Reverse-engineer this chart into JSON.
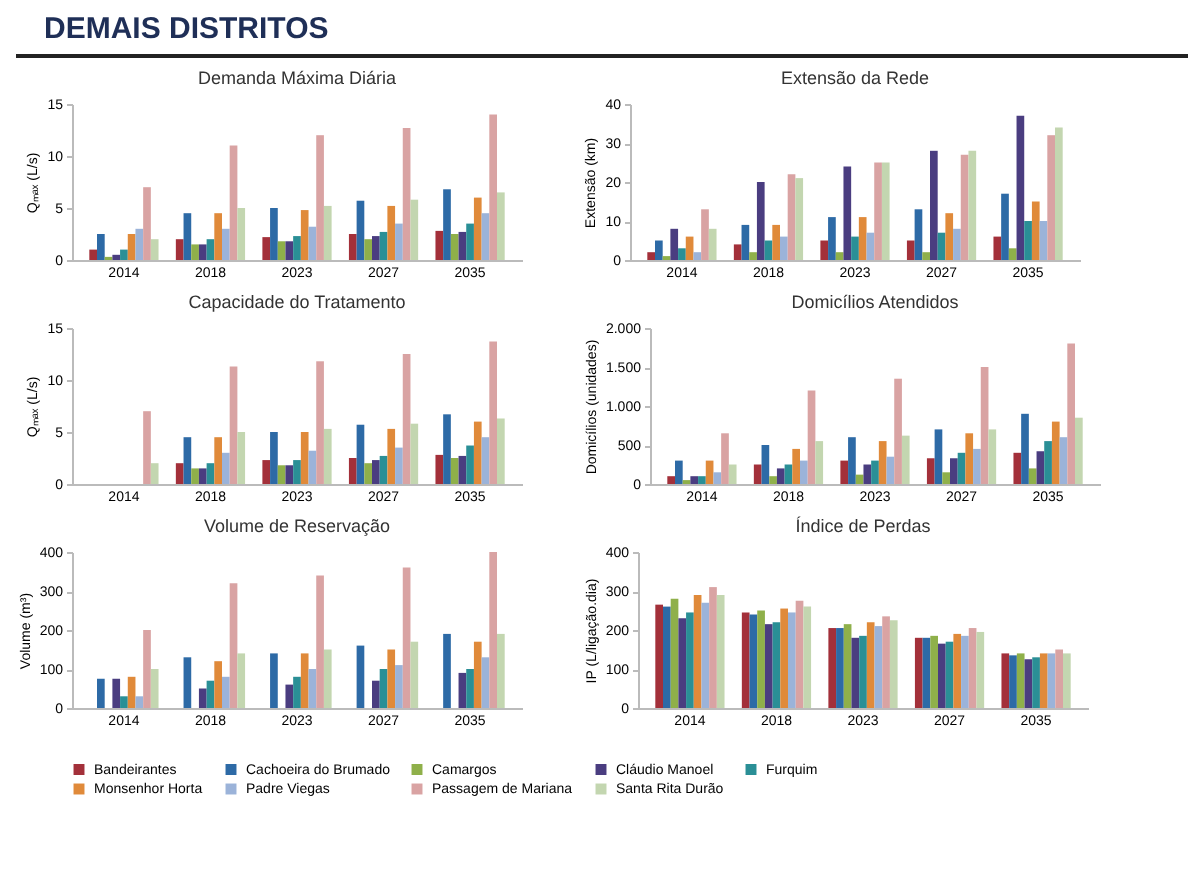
{
  "chart_data": [
    {
      "type": "bar",
      "title": "Demanda Máxima Diária",
      "ylabel": "Qₘₐₓ (L/s)",
      "annotations": [
        "DEMAIS DISTRITOS"
      ],
      "categories": [
        "2014",
        "2018",
        "2023",
        "2027",
        "2035"
      ],
      "ylim": [
        0,
        15
      ],
      "yticks": [
        0,
        5,
        10,
        15
      ],
      "legend": "bottom",
      "series": [
        {
          "name": "Bandeirantes",
          "color": "#a3303a",
          "values": [
            1,
            2,
            2.2,
            2.5,
            2.8
          ]
        },
        {
          "name": "Cachoeira do Brumado",
          "color": "#2d6aa6",
          "values": [
            2.5,
            4.5,
            5,
            5.7,
            6.8
          ]
        },
        {
          "name": "Camargos",
          "color": "#8fb04a",
          "values": [
            0.3,
            1.5,
            1.8,
            2,
            2.5
          ]
        },
        {
          "name": "Cláudio Manoel",
          "color": "#4a3d80",
          "values": [
            0.5,
            1.5,
            1.8,
            2.3,
            2.7
          ]
        },
        {
          "name": "Furquim",
          "color": "#2a8f96",
          "values": [
            1,
            2,
            2.3,
            2.7,
            3.5
          ]
        },
        {
          "name": "Monsenhor Horta",
          "color": "#e08a3a",
          "values": [
            2.5,
            4.5,
            4.8,
            5.2,
            6
          ]
        },
        {
          "name": "Padre Viegas",
          "color": "#9bb3d9",
          "values": [
            3,
            3,
            3.2,
            3.5,
            4.5
          ]
        },
        {
          "name": "Passagem de Mariana",
          "color": "#d9a3a3",
          "values": [
            7,
            11,
            12,
            12.7,
            14
          ]
        },
        {
          "name": "Santa Rita Durão",
          "color": "#c3d6b0",
          "values": [
            2,
            5,
            5.2,
            5.8,
            6.5
          ]
        }
      ]
    },
    {
      "type": "bar",
      "title": "Extensão da Rede",
      "ylabel": "Extensão (km)",
      "categories": [
        "2014",
        "2018",
        "2023",
        "2027",
        "2035"
      ],
      "ylim": [
        0,
        40
      ],
      "yticks": [
        0,
        10,
        20,
        30,
        40
      ],
      "legend": "bottom",
      "series": [
        {
          "name": "Bandeirantes",
          "color": "#a3303a",
          "values": [
            2,
            4,
            5,
            5,
            6
          ]
        },
        {
          "name": "Cachoeira do Brumado",
          "color": "#2d6aa6",
          "values": [
            5,
            9,
            11,
            13,
            17
          ]
        },
        {
          "name": "Camargos",
          "color": "#8fb04a",
          "values": [
            1,
            2,
            2,
            2,
            3
          ]
        },
        {
          "name": "Cláudio Manoel",
          "color": "#4a3d80",
          "values": [
            8,
            20,
            24,
            28,
            37
          ]
        },
        {
          "name": "Furquim",
          "color": "#2a8f96",
          "values": [
            3,
            5,
            6,
            7,
            10
          ]
        },
        {
          "name": "Monsenhor Horta",
          "color": "#e08a3a",
          "values": [
            6,
            9,
            11,
            12,
            15
          ]
        },
        {
          "name": "Padre Viegas",
          "color": "#9bb3d9",
          "values": [
            2,
            6,
            7,
            8,
            10
          ]
        },
        {
          "name": "Passagem de Mariana",
          "color": "#d9a3a3",
          "values": [
            13,
            22,
            25,
            27,
            32
          ]
        },
        {
          "name": "Santa Rita Durão",
          "color": "#c3d6b0",
          "values": [
            8,
            21,
            25,
            28,
            34
          ]
        }
      ]
    },
    {
      "type": "bar",
      "title": "Capacidade do Tratamento",
      "ylabel": "Qₘₐₓ (L/s)",
      "categories": [
        "2014",
        "2018",
        "2023",
        "2027",
        "2035"
      ],
      "ylim": [
        0,
        15
      ],
      "yticks": [
        0,
        5,
        10,
        15
      ],
      "legend": "bottom",
      "series": [
        {
          "name": "Bandeirantes",
          "color": "#a3303a",
          "values": [
            0,
            2,
            2.3,
            2.5,
            2.8
          ]
        },
        {
          "name": "Cachoeira do Brumado",
          "color": "#2d6aa6",
          "values": [
            0,
            4.5,
            5,
            5.7,
            6.7
          ]
        },
        {
          "name": "Camargos",
          "color": "#8fb04a",
          "values": [
            0,
            1.5,
            1.8,
            2,
            2.5
          ]
        },
        {
          "name": "Cláudio Manoel",
          "color": "#4a3d80",
          "values": [
            0,
            1.5,
            1.8,
            2.3,
            2.7
          ]
        },
        {
          "name": "Furquim",
          "color": "#2a8f96",
          "values": [
            0,
            2,
            2.3,
            2.7,
            3.7
          ]
        },
        {
          "name": "Monsenhor Horta",
          "color": "#e08a3a",
          "values": [
            0,
            4.5,
            5,
            5.3,
            6
          ]
        },
        {
          "name": "Padre Viegas",
          "color": "#9bb3d9",
          "values": [
            0,
            3,
            3.2,
            3.5,
            4.5
          ]
        },
        {
          "name": "Passagem de Mariana",
          "color": "#d9a3a3",
          "values": [
            7,
            11.3,
            11.8,
            12.5,
            13.7
          ]
        },
        {
          "name": "Santa Rita Durão",
          "color": "#c3d6b0",
          "values": [
            2,
            5,
            5.3,
            5.8,
            6.3
          ]
        }
      ]
    },
    {
      "type": "bar",
      "title": "Domicílios Atendidos",
      "ylabel": "Domicílios (unidades)",
      "categories": [
        "2014",
        "2018",
        "2023",
        "2027",
        "2035"
      ],
      "ylim": [
        0,
        2000
      ],
      "yticks": [
        0,
        500,
        {
          "value": 1000,
          "label": "1.000"
        },
        {
          "value": 1500,
          "label": "1.500"
        },
        {
          "value": 2000,
          "label": "2.000"
        }
      ],
      "legend": "bottom",
      "series": [
        {
          "name": "Bandeirantes",
          "color": "#a3303a",
          "values": [
            100,
            250,
            300,
            330,
            400
          ]
        },
        {
          "name": "Cachoeira do Brumado",
          "color": "#2d6aa6",
          "values": [
            300,
            500,
            600,
            700,
            900
          ]
        },
        {
          "name": "Camargos",
          "color": "#8fb04a",
          "values": [
            50,
            100,
            120,
            150,
            200
          ]
        },
        {
          "name": "Cláudio Manoel",
          "color": "#4a3d80",
          "values": [
            100,
            200,
            250,
            330,
            420
          ]
        },
        {
          "name": "Furquim",
          "color": "#2a8f96",
          "values": [
            100,
            250,
            300,
            400,
            550
          ]
        },
        {
          "name": "Monsenhor Horta",
          "color": "#e08a3a",
          "values": [
            300,
            450,
            550,
            650,
            800
          ]
        },
        {
          "name": "Padre Viegas",
          "color": "#9bb3d9",
          "values": [
            150,
            300,
            350,
            450,
            600
          ]
        },
        {
          "name": "Passagem de Mariana",
          "color": "#d9a3a3",
          "values": [
            650,
            1200,
            1350,
            1500,
            1800
          ]
        },
        {
          "name": "Santa Rita Durão",
          "color": "#c3d6b0",
          "values": [
            250,
            550,
            620,
            700,
            850
          ]
        }
      ]
    },
    {
      "type": "bar",
      "title": "Volume de Reservação",
      "ylabel": "Volume (m³)",
      "categories": [
        "2014",
        "2018",
        "2023",
        "2027",
        "2035"
      ],
      "ylim": [
        0,
        400
      ],
      "yticks": [
        0,
        100,
        200,
        300,
        400
      ],
      "legend": "bottom",
      "series": [
        {
          "name": "Bandeirantes",
          "color": "#a3303a",
          "values": [
            0,
            0,
            0,
            0,
            0
          ]
        },
        {
          "name": "Cachoeira do Brumado",
          "color": "#2d6aa6",
          "values": [
            75,
            130,
            140,
            160,
            190
          ]
        },
        {
          "name": "Camargos",
          "color": "#8fb04a",
          "values": [
            0,
            0,
            0,
            0,
            0
          ]
        },
        {
          "name": "Cláudio Manoel",
          "color": "#4a3d80",
          "values": [
            75,
            50,
            60,
            70,
            90
          ]
        },
        {
          "name": "Furquim",
          "color": "#2a8f96",
          "values": [
            30,
            70,
            80,
            100,
            100
          ]
        },
        {
          "name": "Monsenhor Horta",
          "color": "#e08a3a",
          "values": [
            80,
            120,
            140,
            150,
            170
          ]
        },
        {
          "name": "Padre Viegas",
          "color": "#9bb3d9",
          "values": [
            30,
            80,
            100,
            110,
            130
          ]
        },
        {
          "name": "Passagem de Mariana",
          "color": "#d9a3a3",
          "values": [
            200,
            320,
            340,
            360,
            400
          ]
        },
        {
          "name": "Santa Rita Durão",
          "color": "#c3d6b0",
          "values": [
            100,
            140,
            150,
            170,
            190
          ]
        }
      ]
    },
    {
      "type": "bar",
      "title": "Índice de Perdas",
      "ylabel": "IP (L/ligação.dia)",
      "categories": [
        "2014",
        "2018",
        "2023",
        "2027",
        "2035"
      ],
      "ylim": [
        0,
        400
      ],
      "yticks": [
        0,
        100,
        200,
        300,
        400
      ],
      "legend": "bottom",
      "series": [
        {
          "name": "Bandeirantes",
          "color": "#a3303a",
          "values": [
            265,
            245,
            205,
            180,
            140
          ]
        },
        {
          "name": "Cachoeira do Brumado",
          "color": "#2d6aa6",
          "values": [
            260,
            240,
            205,
            180,
            135
          ]
        },
        {
          "name": "Camargos",
          "color": "#8fb04a",
          "values": [
            280,
            250,
            215,
            185,
            140
          ]
        },
        {
          "name": "Cláudio Manoel",
          "color": "#4a3d80",
          "values": [
            230,
            215,
            180,
            165,
            125
          ]
        },
        {
          "name": "Furquim",
          "color": "#2a8f96",
          "values": [
            245,
            220,
            185,
            170,
            130
          ]
        },
        {
          "name": "Monsenhor Horta",
          "color": "#e08a3a",
          "values": [
            290,
            255,
            220,
            190,
            140
          ]
        },
        {
          "name": "Padre Viegas",
          "color": "#9bb3d9",
          "values": [
            270,
            245,
            210,
            185,
            140
          ]
        },
        {
          "name": "Passagem de Mariana",
          "color": "#d9a3a3",
          "values": [
            310,
            275,
            235,
            205,
            150
          ]
        },
        {
          "name": "Santa Rita Durão",
          "color": "#c3d6b0",
          "values": [
            290,
            260,
            225,
            195,
            140
          ]
        }
      ]
    }
  ]
}
